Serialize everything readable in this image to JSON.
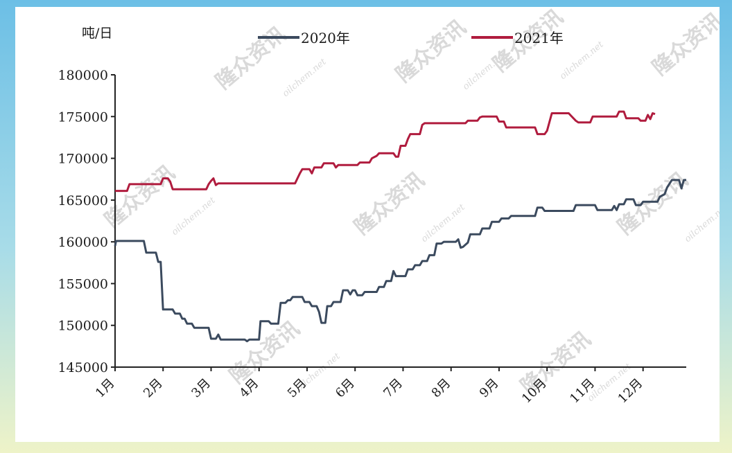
{
  "chart_data": {
    "type": "line",
    "ylabel": "吨/日",
    "ylim": [
      145000,
      180000
    ],
    "yticks": [
      145000,
      150000,
      155000,
      160000,
      165000,
      170000,
      175000,
      180000
    ],
    "xlim": [
      1,
      12.9
    ],
    "months": [
      "1月",
      "2月",
      "3月",
      "4月",
      "5月",
      "6月",
      "7月",
      "8月",
      "9月",
      "10月",
      "11月",
      "12月"
    ],
    "legend_position": "top",
    "grid": false,
    "watermark": {
      "cn": "隆众资讯",
      "en": "oilchem.net"
    },
    "series": [
      {
        "name": "2020年",
        "color": "#3b4a5e",
        "points": [
          [
            1.0,
            159500
          ],
          [
            1.02,
            160100
          ],
          [
            1.6,
            160100
          ],
          [
            1.65,
            158700
          ],
          [
            1.85,
            158700
          ],
          [
            1.9,
            157600
          ],
          [
            1.95,
            157600
          ],
          [
            2.0,
            151900
          ],
          [
            2.2,
            151900
          ],
          [
            2.25,
            151400
          ],
          [
            2.35,
            151400
          ],
          [
            2.4,
            150800
          ],
          [
            2.45,
            150800
          ],
          [
            2.5,
            150200
          ],
          [
            2.6,
            150200
          ],
          [
            2.65,
            149700
          ],
          [
            2.95,
            149700
          ],
          [
            3.0,
            148400
          ],
          [
            3.1,
            148400
          ],
          [
            3.15,
            148900
          ],
          [
            3.2,
            148300
          ],
          [
            3.7,
            148300
          ],
          [
            3.75,
            148100
          ],
          [
            3.8,
            148300
          ],
          [
            4.0,
            148300
          ],
          [
            4.03,
            150500
          ],
          [
            4.2,
            150500
          ],
          [
            4.25,
            150200
          ],
          [
            4.4,
            150200
          ],
          [
            4.45,
            152700
          ],
          [
            4.55,
            152700
          ],
          [
            4.6,
            153000
          ],
          [
            4.65,
            153000
          ],
          [
            4.7,
            153400
          ],
          [
            4.9,
            153400
          ],
          [
            4.95,
            152800
          ],
          [
            5.05,
            152800
          ],
          [
            5.1,
            152300
          ],
          [
            5.2,
            152300
          ],
          [
            5.25,
            151600
          ],
          [
            5.3,
            150300
          ],
          [
            5.38,
            150300
          ],
          [
            5.42,
            152300
          ],
          [
            5.5,
            152300
          ],
          [
            5.55,
            152800
          ],
          [
            5.7,
            152800
          ],
          [
            5.75,
            154200
          ],
          [
            5.85,
            154200
          ],
          [
            5.9,
            153700
          ],
          [
            5.95,
            154200
          ],
          [
            6.0,
            154200
          ],
          [
            6.05,
            153600
          ],
          [
            6.15,
            153600
          ],
          [
            6.2,
            154000
          ],
          [
            6.45,
            154000
          ],
          [
            6.5,
            154600
          ],
          [
            6.6,
            154600
          ],
          [
            6.65,
            155300
          ],
          [
            6.75,
            155300
          ],
          [
            6.8,
            156500
          ],
          [
            6.85,
            155900
          ],
          [
            7.05,
            155900
          ],
          [
            7.1,
            156700
          ],
          [
            7.2,
            156700
          ],
          [
            7.25,
            157200
          ],
          [
            7.35,
            157200
          ],
          [
            7.4,
            157700
          ],
          [
            7.5,
            157700
          ],
          [
            7.55,
            158400
          ],
          [
            7.65,
            158400
          ],
          [
            7.7,
            159800
          ],
          [
            7.8,
            159800
          ],
          [
            7.85,
            160000
          ],
          [
            8.1,
            160000
          ],
          [
            8.15,
            160300
          ],
          [
            8.2,
            159300
          ],
          [
            8.25,
            159400
          ],
          [
            8.35,
            159900
          ],
          [
            8.4,
            160900
          ],
          [
            8.6,
            160900
          ],
          [
            8.65,
            161600
          ],
          [
            8.8,
            161600
          ],
          [
            8.85,
            162400
          ],
          [
            9.0,
            162400
          ],
          [
            9.05,
            162800
          ],
          [
            9.2,
            162800
          ],
          [
            9.25,
            163100
          ],
          [
            9.75,
            163100
          ],
          [
            9.8,
            164100
          ],
          [
            9.9,
            164100
          ],
          [
            9.95,
            163700
          ],
          [
            10.55,
            163700
          ],
          [
            10.6,
            164400
          ],
          [
            11.0,
            164400
          ],
          [
            11.05,
            163800
          ],
          [
            11.35,
            163800
          ],
          [
            11.4,
            164300
          ],
          [
            11.45,
            163800
          ],
          [
            11.5,
            164500
          ],
          [
            11.6,
            164500
          ],
          [
            11.65,
            165100
          ],
          [
            11.8,
            165100
          ],
          [
            11.85,
            164400
          ],
          [
            11.95,
            164400
          ],
          [
            12.0,
            164800
          ],
          [
            12.3,
            164800
          ],
          [
            12.35,
            165400
          ],
          [
            12.45,
            165700
          ],
          [
            12.5,
            166500
          ],
          [
            12.6,
            167400
          ],
          [
            12.75,
            167400
          ],
          [
            12.8,
            166400
          ],
          [
            12.85,
            167400
          ],
          [
            12.9,
            167400
          ]
        ]
      },
      {
        "name": "2021年",
        "color": "#b01c3e",
        "points": [
          [
            1.0,
            166100
          ],
          [
            1.25,
            166100
          ],
          [
            1.3,
            166900
          ],
          [
            1.95,
            166900
          ],
          [
            2.0,
            167600
          ],
          [
            2.1,
            167600
          ],
          [
            2.15,
            167200
          ],
          [
            2.2,
            166300
          ],
          [
            2.9,
            166300
          ],
          [
            2.95,
            166900
          ],
          [
            3.0,
            167300
          ],
          [
            3.05,
            167600
          ],
          [
            3.1,
            166800
          ],
          [
            3.15,
            167000
          ],
          [
            4.75,
            167000
          ],
          [
            4.8,
            167600
          ],
          [
            4.85,
            168200
          ],
          [
            4.9,
            168700
          ],
          [
            5.05,
            168700
          ],
          [
            5.1,
            168200
          ],
          [
            5.15,
            168900
          ],
          [
            5.3,
            168900
          ],
          [
            5.35,
            169400
          ],
          [
            5.55,
            169400
          ],
          [
            5.6,
            168900
          ],
          [
            5.65,
            169200
          ],
          [
            6.05,
            169200
          ],
          [
            6.1,
            169500
          ],
          [
            6.3,
            169500
          ],
          [
            6.35,
            170000
          ],
          [
            6.45,
            170300
          ],
          [
            6.5,
            170600
          ],
          [
            6.8,
            170600
          ],
          [
            6.85,
            170200
          ],
          [
            6.9,
            170200
          ],
          [
            6.95,
            171500
          ],
          [
            7.05,
            171500
          ],
          [
            7.1,
            172300
          ],
          [
            7.15,
            172900
          ],
          [
            7.35,
            172900
          ],
          [
            7.4,
            174000
          ],
          [
            7.45,
            174200
          ],
          [
            8.3,
            174200
          ],
          [
            8.35,
            174500
          ],
          [
            8.55,
            174500
          ],
          [
            8.6,
            174900
          ],
          [
            8.65,
            175000
          ],
          [
            8.95,
            175000
          ],
          [
            9.0,
            174400
          ],
          [
            9.1,
            174400
          ],
          [
            9.15,
            173700
          ],
          [
            9.4,
            173700
          ],
          [
            9.75,
            173700
          ],
          [
            9.8,
            172900
          ],
          [
            9.95,
            172900
          ],
          [
            10.0,
            173300
          ],
          [
            10.1,
            175400
          ],
          [
            10.45,
            175400
          ],
          [
            10.5,
            175100
          ],
          [
            10.6,
            174500
          ],
          [
            10.65,
            174300
          ],
          [
            10.9,
            174300
          ],
          [
            10.95,
            175000
          ],
          [
            11.45,
            175000
          ],
          [
            11.5,
            175600
          ],
          [
            11.6,
            175600
          ],
          [
            11.65,
            174800
          ],
          [
            11.9,
            174800
          ],
          [
            11.95,
            174500
          ],
          [
            12.05,
            174500
          ],
          [
            12.1,
            175200
          ],
          [
            12.15,
            174700
          ],
          [
            12.2,
            175400
          ],
          [
            12.25,
            175300
          ]
        ]
      }
    ]
  }
}
